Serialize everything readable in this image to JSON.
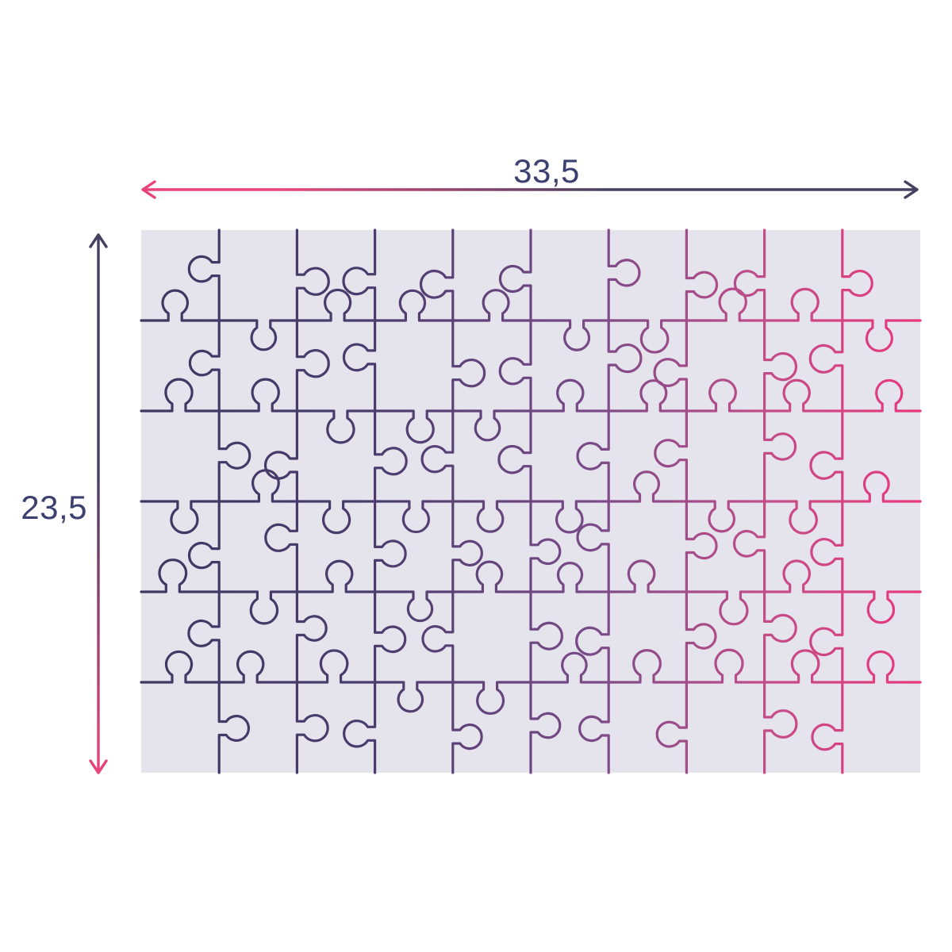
{
  "diagram": {
    "type": "puzzle-dimensions",
    "width_label": "33,5",
    "height_label": "23,5",
    "grid": {
      "columns": 10,
      "rows": 6,
      "pieces": 60
    },
    "colors": {
      "background": "#ffffff",
      "board_fill": "#e5e3ec",
      "label_text": "#3b4070",
      "arrow_navy": "#444060",
      "arrow_pink": "#e8447a",
      "line_gradient": [
        "#3e3862",
        "#4a3d6d",
        "#7a4a88",
        "#c24d89",
        "#e8387b"
      ]
    }
  }
}
